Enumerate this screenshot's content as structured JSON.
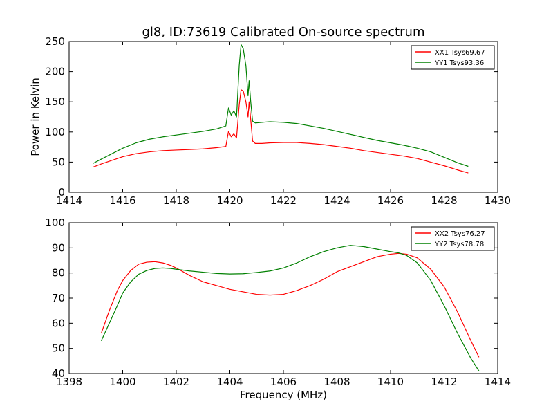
{
  "figure": {
    "title": "gl8, ID:73619 Calibrated On-source spectrum",
    "colors": {
      "red": "#ff0000",
      "green": "#008000",
      "axes": "#000000"
    }
  },
  "chart_data": [
    {
      "type": "line",
      "title": "gl8, ID:73619 Calibrated On-source spectrum",
      "xlabel": "",
      "ylabel": "Power in Kelvin",
      "xlim": [
        1414,
        1430
      ],
      "ylim": [
        0,
        250
      ],
      "xticks": [
        1414,
        1416,
        1418,
        1420,
        1422,
        1424,
        1426,
        1428,
        1430
      ],
      "yticks": [
        0,
        50,
        100,
        150,
        200,
        250
      ],
      "grid": false,
      "legend_position": "top-right",
      "series": [
        {
          "name": "XX1 Tsys69.67",
          "color": "#ff0000",
          "x": [
            1414.9,
            1415.2,
            1415.6,
            1416.0,
            1416.5,
            1417.0,
            1417.5,
            1418.0,
            1418.5,
            1419.0,
            1419.5,
            1419.85,
            1419.95,
            1420.05,
            1420.15,
            1420.25,
            1420.35,
            1420.42,
            1420.5,
            1420.6,
            1420.68,
            1420.72,
            1420.78,
            1420.85,
            1420.95,
            1421.2,
            1421.5,
            1422.0,
            1422.5,
            1423.0,
            1423.5,
            1424.0,
            1424.5,
            1425.0,
            1425.5,
            1426.0,
            1426.5,
            1427.0,
            1427.5,
            1428.0,
            1428.5,
            1428.9
          ],
          "y": [
            42,
            47,
            53,
            59,
            64,
            67,
            69,
            70,
            71,
            72,
            74,
            76,
            101,
            92,
            97,
            90,
            145,
            170,
            168,
            150,
            125,
            150,
            120,
            85,
            81,
            81,
            82,
            82.5,
            82.5,
            81,
            79,
            76,
            73,
            69,
            66,
            63,
            60,
            56,
            50,
            44,
            37,
            32
          ]
        },
        {
          "name": "YY1 Tsys93.36",
          "color": "#008000",
          "x": [
            1414.9,
            1415.2,
            1415.6,
            1416.0,
            1416.5,
            1417.0,
            1417.5,
            1418.0,
            1418.5,
            1419.0,
            1419.5,
            1419.85,
            1419.95,
            1420.05,
            1420.15,
            1420.25,
            1420.35,
            1420.42,
            1420.5,
            1420.6,
            1420.68,
            1420.72,
            1420.78,
            1420.85,
            1420.95,
            1421.2,
            1421.5,
            1422.0,
            1422.5,
            1423.0,
            1423.5,
            1424.0,
            1424.5,
            1425.0,
            1425.5,
            1426.0,
            1426.5,
            1427.0,
            1427.5,
            1428.0,
            1428.5,
            1428.9
          ],
          "y": [
            48,
            55,
            64,
            73,
            82,
            88,
            92,
            95,
            98,
            101,
            105,
            110,
            140,
            128,
            135,
            125,
            210,
            245,
            238,
            210,
            160,
            185,
            150,
            118,
            115,
            116,
            117,
            116,
            114,
            110,
            106,
            101,
            96,
            91,
            86,
            82,
            78,
            73,
            67,
            58,
            49,
            43
          ]
        }
      ]
    },
    {
      "type": "line",
      "title": "",
      "xlabel": "Frequency (MHz)",
      "ylabel": "",
      "xlim": [
        1398,
        1414
      ],
      "ylim": [
        40,
        100
      ],
      "xticks": [
        1398,
        1400,
        1402,
        1404,
        1406,
        1408,
        1410,
        1412,
        1414
      ],
      "yticks": [
        40,
        50,
        60,
        70,
        80,
        90,
        100
      ],
      "grid": false,
      "legend_position": "top-right",
      "series": [
        {
          "name": "XX2 Tsys76.27",
          "color": "#ff0000",
          "x": [
            1399.2,
            1399.5,
            1399.8,
            1400.0,
            1400.3,
            1400.6,
            1400.9,
            1401.2,
            1401.5,
            1401.8,
            1402.0,
            1402.5,
            1403.0,
            1403.5,
            1404.0,
            1404.5,
            1405.0,
            1405.5,
            1406.0,
            1406.5,
            1407.0,
            1407.5,
            1408.0,
            1408.5,
            1409.0,
            1409.5,
            1410.0,
            1410.3,
            1410.6,
            1411.0,
            1411.5,
            1412.0,
            1412.5,
            1413.0,
            1413.3
          ],
          "y": [
            56,
            65,
            73,
            77,
            81,
            83.5,
            84.3,
            84.5,
            84,
            83,
            82,
            79,
            76.5,
            75,
            73.5,
            72.5,
            71.5,
            71.2,
            71.5,
            73,
            75,
            77.5,
            80.5,
            82.5,
            84.5,
            86.5,
            87.5,
            87.8,
            87.5,
            86,
            81.5,
            74.5,
            64.5,
            53,
            46.5
          ]
        },
        {
          "name": "YY2 Tsys78.78",
          "color": "#008000",
          "x": [
            1399.2,
            1399.5,
            1399.8,
            1400.0,
            1400.3,
            1400.6,
            1400.9,
            1401.2,
            1401.5,
            1401.8,
            1402.0,
            1402.5,
            1403.0,
            1403.5,
            1404.0,
            1404.5,
            1405.0,
            1405.5,
            1406.0,
            1406.5,
            1407.0,
            1407.5,
            1408.0,
            1408.5,
            1409.0,
            1409.5,
            1410.0,
            1410.3,
            1410.6,
            1411.0,
            1411.5,
            1412.0,
            1412.5,
            1413.0,
            1413.3
          ],
          "y": [
            53,
            60,
            67,
            72,
            76.5,
            79.5,
            81,
            81.8,
            82,
            81.8,
            81.5,
            80.8,
            80.3,
            79.8,
            79.6,
            79.7,
            80.2,
            80.8,
            82,
            84,
            86.5,
            88.5,
            90,
            91,
            90.5,
            89.5,
            88.5,
            88,
            87,
            84,
            77,
            67,
            56,
            46,
            41
          ]
        }
      ]
    }
  ]
}
